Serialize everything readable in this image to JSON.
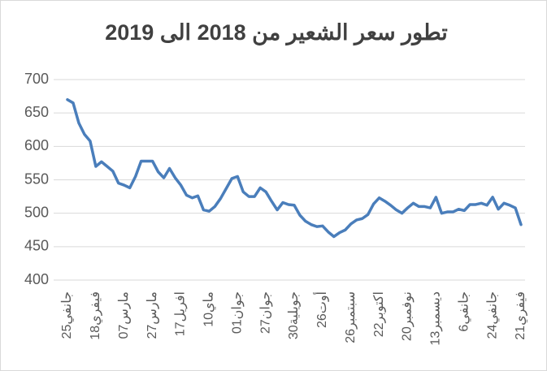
{
  "chart_data": {
    "type": "line",
    "title": "تطور سعر الشعير من 2018 الى 2019",
    "categories": [
      "25جانفي",
      null,
      null,
      null,
      null,
      "18فيفري",
      null,
      null,
      null,
      null,
      "07مارس",
      null,
      null,
      null,
      null,
      "27مارس",
      null,
      null,
      null,
      null,
      "17افريل",
      null,
      null,
      null,
      null,
      "10ماي",
      null,
      null,
      null,
      null,
      "01جوان",
      null,
      null,
      null,
      null,
      "27جوان",
      null,
      null,
      null,
      null,
      "30جويلية",
      null,
      null,
      null,
      null,
      "26أوت",
      null,
      null,
      null,
      null,
      "26سبتمبر",
      null,
      null,
      null,
      null,
      "22اكتوبر",
      null,
      null,
      null,
      null,
      "20نوفمبر",
      null,
      null,
      null,
      null,
      "13ديسمبر",
      null,
      null,
      null,
      null,
      "6جانفي",
      null,
      null,
      null,
      null,
      "24جانفي",
      null,
      null,
      null,
      null,
      "21فيفري"
    ],
    "series": [
      {
        "name": "سعر الشعير",
        "color": "#4a7ebb",
        "values": [
          670,
          665,
          635,
          618,
          608,
          570,
          577,
          570,
          563,
          545,
          542,
          538,
          555,
          578,
          578,
          578,
          562,
          553,
          567,
          553,
          542,
          527,
          523,
          526,
          505,
          503,
          510,
          522,
          537,
          552,
          555,
          532,
          525,
          525,
          538,
          532,
          518,
          505,
          516,
          513,
          512,
          497,
          488,
          483,
          480,
          481,
          472,
          465,
          471,
          475,
          484,
          490,
          492,
          498,
          514,
          523,
          518,
          512,
          505,
          500,
          508,
          515,
          510,
          510,
          508,
          524,
          500,
          502,
          502,
          506,
          504,
          513,
          513,
          515,
          512,
          524,
          506,
          515,
          512,
          508,
          483
        ]
      }
    ],
    "ylim": [
      400,
      700
    ],
    "yticks": [
      400,
      450,
      500,
      550,
      600,
      650,
      700
    ],
    "grid": true
  }
}
